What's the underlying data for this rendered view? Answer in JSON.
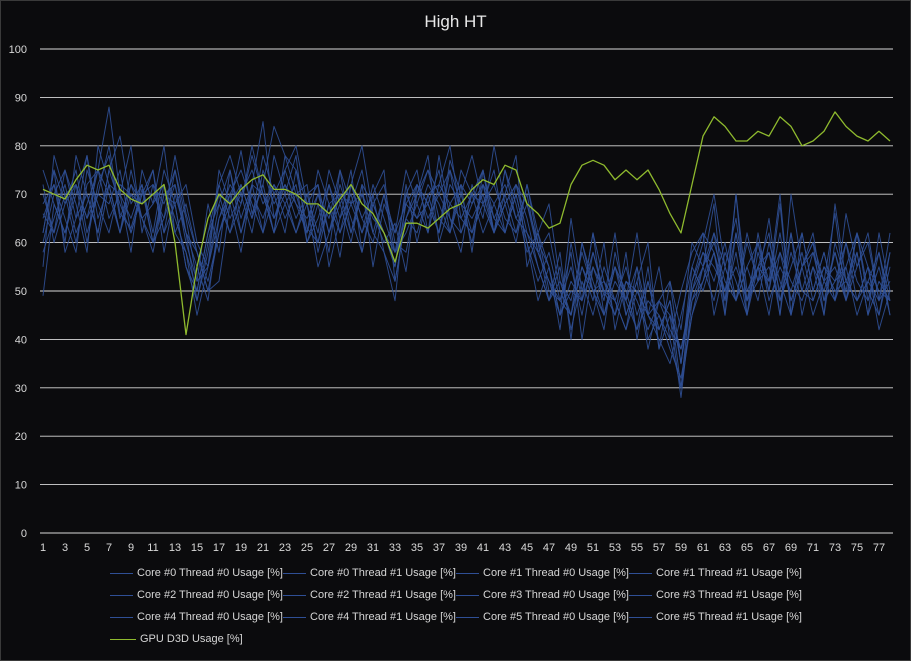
{
  "chart_data": {
    "type": "line",
    "title": "High HT",
    "xlabel": "",
    "ylabel": "",
    "ylim": [
      0,
      100
    ],
    "yticks": [
      0,
      10,
      20,
      30,
      40,
      50,
      60,
      70,
      80,
      90,
      100
    ],
    "x_tick_labels": [
      "1",
      "3",
      "5",
      "7",
      "9",
      "11",
      "13",
      "15",
      "17",
      "19",
      "21",
      "23",
      "25",
      "27",
      "29",
      "31",
      "33",
      "35",
      "37",
      "39",
      "41",
      "43",
      "45",
      "47",
      "49",
      "51",
      "53",
      "55",
      "57",
      "59",
      "61",
      "63",
      "65",
      "67",
      "69",
      "71",
      "73",
      "75",
      "77"
    ],
    "x": [
      1,
      2,
      3,
      4,
      5,
      6,
      7,
      8,
      9,
      10,
      11,
      12,
      13,
      14,
      15,
      16,
      17,
      18,
      19,
      20,
      21,
      22,
      23,
      24,
      25,
      26,
      27,
      28,
      29,
      30,
      31,
      32,
      33,
      34,
      35,
      36,
      37,
      38,
      39,
      40,
      41,
      42,
      43,
      44,
      45,
      46,
      47,
      48,
      49,
      50,
      51,
      52,
      53,
      54,
      55,
      56,
      57,
      58,
      59,
      60,
      61,
      62,
      63,
      64,
      65,
      66,
      67,
      68,
      69,
      70,
      71,
      72,
      73,
      74,
      75,
      76,
      77,
      78
    ],
    "grid": true,
    "legend_position": "bottom",
    "colors": {
      "cpu": "#2f4f95",
      "gpu": "#8fba2e",
      "grid": "#d9d9d9",
      "axis_text": "#d9d9d9"
    },
    "series": [
      {
        "name": "Core #0 Thread #0 Usage [%]",
        "values": [
          49,
          68,
          62,
          72,
          65,
          70,
          80,
          66,
          63,
          71,
          60,
          65,
          78,
          66,
          58,
          50,
          52,
          68,
          79,
          66,
          72,
          84,
          78,
          75,
          63,
          60,
          68,
          57,
          72,
          80,
          66,
          60,
          64,
          54,
          72,
          68,
          62,
          77,
          70,
          62,
          68,
          75,
          62,
          72,
          68,
          60,
          55,
          45,
          65,
          50,
          58,
          49,
          55,
          45,
          52,
          60,
          38,
          52,
          42,
          60,
          55,
          68,
          45,
          70,
          50,
          55,
          62,
          45,
          70,
          55,
          60,
          52,
          66,
          48,
          62,
          55,
          45,
          58
        ]
      },
      {
        "name": "Core #0 Thread #1 Usage [%]",
        "values": [
          62,
          75,
          58,
          65,
          78,
          60,
          72,
          62,
          70,
          68,
          75,
          58,
          70,
          62,
          48,
          60,
          70,
          62,
          68,
          78,
          70,
          62,
          75,
          80,
          68,
          55,
          62,
          72,
          65,
          58,
          70,
          75,
          52,
          65,
          70,
          78,
          60,
          68,
          72,
          58,
          75,
          62,
          70,
          78,
          55,
          62,
          68,
          52,
          45,
          60,
          50,
          42,
          58,
          48,
          62,
          45,
          55,
          40,
          50,
          58,
          62,
          45,
          55,
          65,
          48,
          60,
          52,
          70,
          45,
          62,
          50,
          58,
          48,
          66,
          55,
          60,
          48,
          62
        ]
      },
      {
        "name": "Core #1 Thread #0 Usage [%]",
        "values": [
          55,
          78,
          70,
          60,
          72,
          75,
          88,
          70,
          58,
          75,
          68,
          80,
          62,
          58,
          45,
          55,
          75,
          68,
          58,
          72,
          85,
          65,
          70,
          78,
          60,
          68,
          58,
          75,
          62,
          70,
          62,
          58,
          48,
          70,
          75,
          62,
          78,
          65,
          58,
          72,
          65,
          80,
          68,
          60,
          72,
          62,
          50,
          48,
          58,
          40,
          55,
          48,
          62,
          45,
          52,
          38,
          48,
          52,
          35,
          55,
          62,
          58,
          48,
          70,
          45,
          58,
          50,
          62,
          48,
          55,
          60,
          45,
          68,
          52,
          58,
          45,
          62,
          50
        ]
      },
      {
        "name": "Core #1 Thread #1 Usage [%]",
        "values": [
          70,
          62,
          75,
          68,
          58,
          80,
          72,
          62,
          75,
          65,
          58,
          70,
          72,
          60,
          52,
          68,
          58,
          75,
          65,
          72,
          62,
          78,
          70,
          62,
          68,
          72,
          55,
          65,
          75,
          58,
          68,
          62,
          55,
          72,
          60,
          70,
          62,
          75,
          68,
          60,
          72,
          62,
          75,
          68,
          58,
          62,
          55,
          42,
          60,
          48,
          62,
          52,
          45,
          58,
          40,
          52,
          42,
          48,
          30,
          52,
          60,
          70,
          55,
          48,
          62,
          52,
          58,
          45,
          62,
          50,
          58,
          52,
          48,
          60,
          52,
          48,
          58,
          45
        ]
      },
      {
        "name": "Core #2 Thread #0 Usage [%]",
        "values": [
          65,
          72,
          60,
          78,
          70,
          62,
          75,
          82,
          68,
          72,
          62,
          75,
          68,
          55,
          50,
          62,
          72,
          78,
          70,
          62,
          75,
          68,
          72,
          65,
          70,
          62,
          75,
          68,
          60,
          72,
          55,
          68,
          62,
          75,
          68,
          62,
          72,
          80,
          65,
          70,
          75,
          62,
          68,
          72,
          65,
          55,
          48,
          58,
          40,
          60,
          52,
          45,
          55,
          48,
          42,
          55,
          38,
          45,
          28,
          48,
          55,
          62,
          48,
          58,
          45,
          62,
          50,
          68,
          45,
          55,
          62,
          48,
          58,
          50,
          62,
          48,
          55,
          45
        ]
      },
      {
        "name": "Core #2 Thread #1 Usage [%]",
        "values": [
          58,
          65,
          72,
          62,
          68,
          75,
          65,
          70,
          80,
          62,
          72,
          68,
          75,
          62,
          55,
          48,
          65,
          72,
          68,
          80,
          70,
          62,
          78,
          70,
          62,
          75,
          68,
          62,
          72,
          65,
          70,
          58,
          52,
          65,
          72,
          68,
          75,
          62,
          70,
          78,
          68,
          62,
          75,
          65,
          70,
          58,
          62,
          50,
          45,
          55,
          48,
          60,
          42,
          52,
          50,
          45,
          40,
          35,
          45,
          55,
          50,
          58,
          45,
          62,
          48,
          55,
          45,
          58,
          52,
          48,
          55,
          45,
          60,
          52,
          48,
          55,
          42,
          50
        ]
      },
      {
        "name": "Core #3 Thread #0 Usage [%]",
        "values": [
          72,
          60,
          68,
          75,
          62,
          70,
          68,
          75,
          62,
          70,
          75,
          62,
          68,
          72,
          60,
          55,
          68,
          62,
          72,
          65,
          78,
          70,
          62,
          75,
          68,
          60,
          72,
          65,
          70,
          62,
          68,
          72,
          60,
          58,
          70,
          75,
          65,
          62,
          72,
          68,
          75,
          65,
          62,
          70,
          60,
          48,
          55,
          45,
          52,
          48,
          62,
          45,
          55,
          50,
          42,
          48,
          45,
          38,
          32,
          45,
          52,
          62,
          55,
          48,
          60,
          52,
          65,
          48,
          55,
          62,
          50,
          58,
          48,
          55,
          62,
          50,
          45,
          55
        ]
      },
      {
        "name": "Core #3 Thread #1 Usage [%]",
        "values": [
          68,
          72,
          65,
          58,
          75,
          68,
          62,
          72,
          70,
          65,
          60,
          72,
          65,
          58,
          50,
          62,
          68,
          75,
          62,
          70,
          65,
          72,
          68,
          62,
          70,
          72,
          62,
          68,
          72,
          65,
          60,
          70,
          62,
          68,
          65,
          72,
          68,
          62,
          75,
          70,
          62,
          68,
          72,
          65,
          62,
          55,
          48,
          52,
          48,
          58,
          50,
          52,
          48,
          42,
          50,
          45,
          48,
          42,
          38,
          50,
          58,
          52,
          60,
          48,
          55,
          60,
          48,
          55,
          50,
          58,
          48,
          55,
          52,
          60,
          48,
          52,
          58,
          48
        ]
      },
      {
        "name": "Core #4 Thread #0 Usage [%]",
        "values": [
          62,
          75,
          68,
          72,
          60,
          72,
          78,
          65,
          72,
          68,
          70,
          65,
          72,
          62,
          58,
          52,
          62,
          70,
          75,
          68,
          62,
          70,
          75,
          68,
          62,
          70,
          65,
          75,
          68,
          62,
          72,
          65,
          58,
          62,
          68,
          75,
          70,
          65,
          62,
          70,
          68,
          72,
          65,
          62,
          68,
          58,
          52,
          48,
          55,
          45,
          58,
          50,
          48,
          55,
          45,
          52,
          42,
          48,
          35,
          52,
          58,
          55,
          50,
          62,
          48,
          55,
          58,
          50,
          62,
          45,
          55,
          50,
          58,
          48,
          55,
          62,
          48,
          52
        ]
      },
      {
        "name": "Core #4 Thread #1 Usage [%]",
        "values": [
          75,
          68,
          62,
          70,
          78,
          65,
          72,
          70,
          65,
          72,
          60,
          70,
          68,
          55,
          48,
          58,
          72,
          65,
          70,
          75,
          68,
          72,
          65,
          70,
          72,
          58,
          68,
          70,
          62,
          72,
          68,
          62,
          55,
          68,
          72,
          65,
          70,
          75,
          62,
          68,
          72,
          65,
          70,
          62,
          72,
          60,
          48,
          55,
          42,
          52,
          45,
          55,
          48,
          42,
          55,
          40,
          45,
          40,
          30,
          45,
          55,
          48,
          58,
          52,
          45,
          55,
          52,
          58,
          48,
          55,
          45,
          52,
          55,
          48,
          58,
          45,
          52,
          48
        ]
      },
      {
        "name": "Core #5 Thread #0 Usage [%]",
        "values": [
          60,
          70,
          75,
          65,
          70,
          62,
          75,
          68,
          62,
          70,
          72,
          62,
          75,
          65,
          52,
          55,
          65,
          70,
          62,
          72,
          70,
          65,
          72,
          68,
          65,
          70,
          62,
          70,
          68,
          75,
          62,
          70,
          58,
          65,
          62,
          70,
          72,
          68,
          65,
          62,
          72,
          68,
          62,
          70,
          60,
          52,
          58,
          48,
          45,
          55,
          50,
          45,
          52,
          48,
          55,
          45,
          42,
          48,
          35,
          50,
          55,
          60,
          52,
          48,
          55,
          48,
          60,
          52,
          45,
          55,
          58,
          48,
          52,
          55,
          45,
          52,
          48,
          58
        ]
      },
      {
        "name": "Core #5 Thread #1 Usage [%]",
        "values": [
          66,
          62,
          70,
          72,
          65,
          75,
          70,
          62,
          72,
          65,
          68,
          72,
          62,
          68,
          58,
          50,
          62,
          68,
          72,
          65,
          72,
          62,
          68,
          72,
          60,
          65,
          72,
          62,
          68,
          70,
          65,
          62,
          58,
          70,
          65,
          68,
          62,
          72,
          68,
          65,
          70,
          62,
          68,
          72,
          62,
          58,
          52,
          45,
          50,
          48,
          55,
          50,
          45,
          52,
          48,
          42,
          48,
          45,
          38,
          48,
          52,
          58,
          50,
          55,
          48,
          52,
          55,
          48,
          58,
          50,
          48,
          55,
          50,
          52,
          48,
          55,
          50,
          48
        ]
      },
      {
        "name": "GPU D3D Usage [%]",
        "values": [
          71,
          70,
          69,
          73,
          76,
          75,
          76,
          71,
          69,
          68,
          70,
          72,
          60,
          41,
          55,
          65,
          70,
          68,
          71,
          73,
          74,
          71,
          71,
          70,
          68,
          68,
          66,
          69,
          72,
          68,
          66,
          62,
          56,
          64,
          64,
          63,
          65,
          67,
          68,
          71,
          73,
          72,
          76,
          75,
          68,
          66,
          63,
          64,
          72,
          76,
          77,
          76,
          73,
          75,
          73,
          75,
          71,
          66,
          62,
          72,
          82,
          86,
          84,
          81,
          81,
          83,
          82,
          86,
          84,
          80,
          81,
          83,
          87,
          84,
          82,
          81,
          83,
          81
        ]
      }
    ]
  }
}
